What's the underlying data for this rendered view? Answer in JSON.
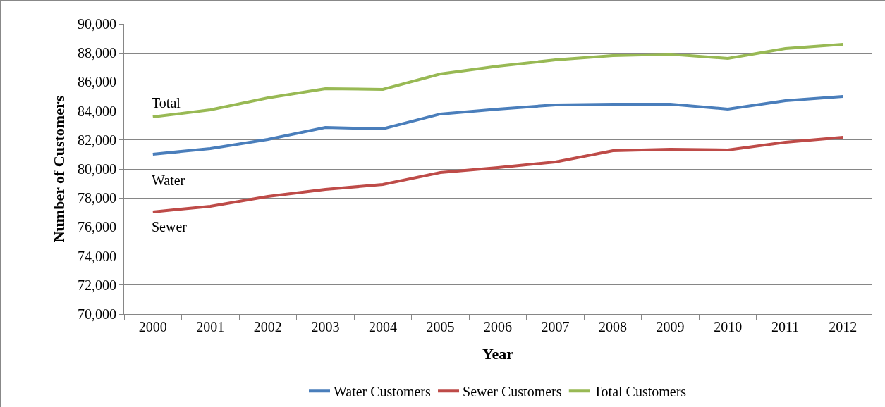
{
  "chart_data": {
    "type": "line",
    "xlabel": "Year",
    "ylabel": "Number of Customers",
    "categories": [
      "2000",
      "2001",
      "2002",
      "2003",
      "2004",
      "2005",
      "2006",
      "2007",
      "2008",
      "2009",
      "2010",
      "2011",
      "2012"
    ],
    "series": [
      {
        "name": "Water Customers",
        "color": "#4a7ebb",
        "values": [
          81020,
          81410,
          82040,
          82860,
          82770,
          83790,
          84130,
          84420,
          84470,
          84470,
          84130,
          84710,
          85000
        ]
      },
      {
        "name": "Sewer Customers",
        "color": "#be4b48",
        "values": [
          77040,
          77430,
          78110,
          78590,
          78930,
          79760,
          80100,
          80490,
          81260,
          81360,
          81310,
          81840,
          82180
        ]
      },
      {
        "name": "Total Customers",
        "color": "#98b954",
        "values": [
          83590,
          84080,
          84900,
          85530,
          85490,
          86550,
          87090,
          87520,
          87820,
          87910,
          87620,
          88300,
          88590
        ]
      }
    ],
    "annotations": [
      "Total",
      "Water",
      "Sewer"
    ],
    "ylim": [
      70000,
      90000
    ],
    "yticks": [
      {
        "value": 70000,
        "label": "70,000"
      },
      {
        "value": 72000,
        "label": "72,000"
      },
      {
        "value": 74000,
        "label": "74,000"
      },
      {
        "value": 76000,
        "label": "76,000"
      },
      {
        "value": 78000,
        "label": "78,000"
      },
      {
        "value": 80000,
        "label": "80,000"
      },
      {
        "value": 82000,
        "label": "82,000"
      },
      {
        "value": 84000,
        "label": "84,000"
      },
      {
        "value": 86000,
        "label": "86,000"
      },
      {
        "value": 88000,
        "label": "88,000"
      },
      {
        "value": 90000,
        "label": "90,000"
      }
    ],
    "grid": "y",
    "legend": "bottom",
    "marker": "none",
    "line_style": "solid"
  }
}
